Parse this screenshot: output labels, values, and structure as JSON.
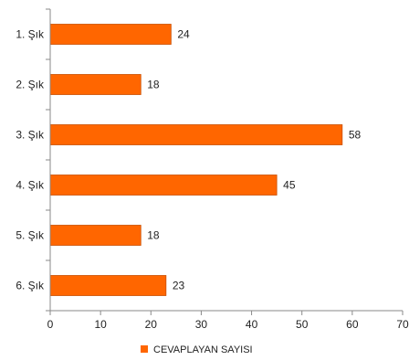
{
  "chart_data": {
    "type": "bar",
    "orientation": "horizontal",
    "title": "",
    "xlabel": "",
    "ylabel": "",
    "categories": [
      "1. Şık",
      "2. Şık",
      "3. Şık",
      "4. Şık",
      "5. Şık",
      "6. Şık"
    ],
    "series": [
      {
        "name": "CEVAPLAYAN SAYISI",
        "values": [
          24,
          18,
          58,
          45,
          18,
          23
        ],
        "color": "#ff6600"
      }
    ],
    "xlim": [
      0,
      70
    ],
    "xticks": [
      "0",
      "10",
      "20",
      "30",
      "40",
      "50",
      "60",
      "70"
    ],
    "grid": false,
    "legend_position": "bottom"
  }
}
